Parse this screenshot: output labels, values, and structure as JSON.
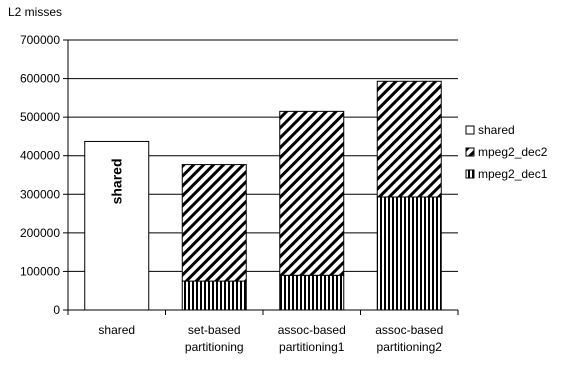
{
  "chart_data": {
    "type": "bar",
    "stacked": true,
    "title": "",
    "ylabel": "L2 misses",
    "xlabel": "",
    "ylim": [
      0,
      700000
    ],
    "yticks": [
      "0",
      "100000",
      "200000",
      "300000",
      "400000",
      "500000",
      "600000",
      "700000"
    ],
    "grid": true,
    "legend_position": "right",
    "categories": [
      [
        "shared"
      ],
      [
        "set-based",
        "partitioning"
      ],
      [
        "assoc-based",
        "partitioning1"
      ],
      [
        "assoc-based",
        "partitioning2"
      ]
    ],
    "series": [
      {
        "name": "shared",
        "fill": "plain",
        "values": [
          437000,
          0,
          0,
          0
        ]
      },
      {
        "name": "mpeg2_dec2",
        "fill": "diagonal",
        "values": [
          0,
          302000,
          425000,
          300000
        ]
      },
      {
        "name": "mpeg2_dec1",
        "fill": "vertical",
        "values": [
          0,
          75000,
          90000,
          293000
        ]
      }
    ],
    "stack_order": [
      "mpeg2_dec1",
      "mpeg2_dec2",
      "shared"
    ],
    "annotations": [
      {
        "text": "shared",
        "category_index": 0,
        "orientation": "vertical",
        "bold": true
      }
    ]
  }
}
